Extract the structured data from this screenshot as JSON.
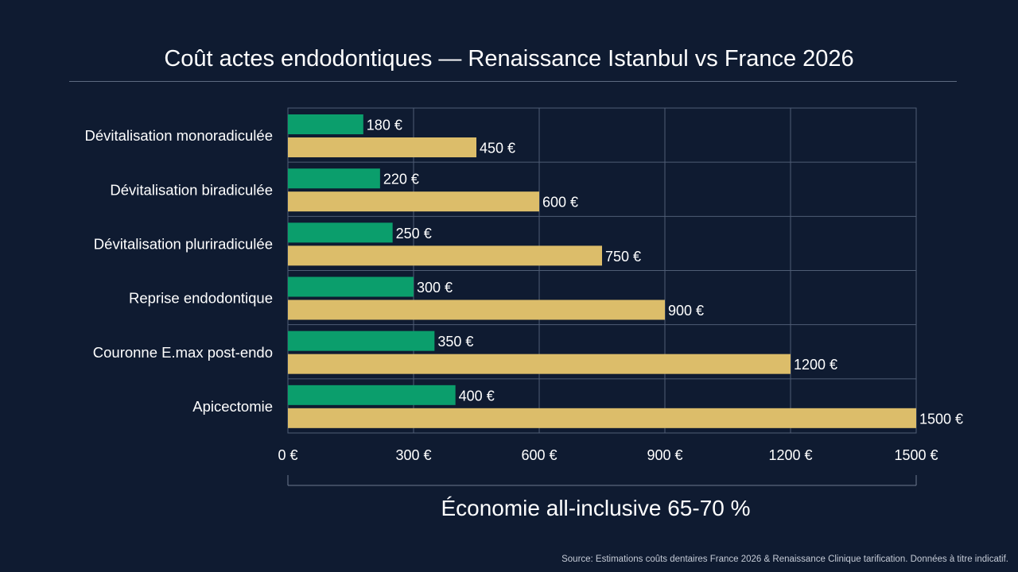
{
  "title": "Coût actes endodontiques — Renaissance Istanbul vs France 2026",
  "footer_note": "Économie all-inclusive 65-70 %",
  "source": "Source: Estimations coûts dentaires France 2026 & Renaissance Clinique tarification. Données à titre indicatif.",
  "chart_data": {
    "type": "bar",
    "orientation": "horizontal",
    "title": "Coût actes endodontiques — Renaissance Istanbul vs France 2026",
    "categories": [
      "Dévitalisation monoradiculée",
      "Dévitalisation biradiculée",
      "Dévitalisation pluriradiculée",
      "Reprise endodontique",
      "Couronne E.max post-endo",
      "Apicectomie"
    ],
    "series": [
      {
        "values": [
          180,
          220,
          250,
          300,
          350,
          400
        ],
        "color": "#0b9e6c"
      },
      {
        "values": [
          450,
          600,
          750,
          900,
          1200,
          1500
        ],
        "color": "#dcbd6a"
      }
    ],
    "value_suffix": " €",
    "xlim": [
      0,
      1500
    ],
    "xticks": [
      0,
      300,
      600,
      900,
      1200,
      1500
    ],
    "xtick_labels": [
      "0 €",
      "300 €",
      "600 €",
      "900 €",
      "1200 €",
      "1500 €"
    ],
    "grid": true,
    "legend": "none"
  }
}
